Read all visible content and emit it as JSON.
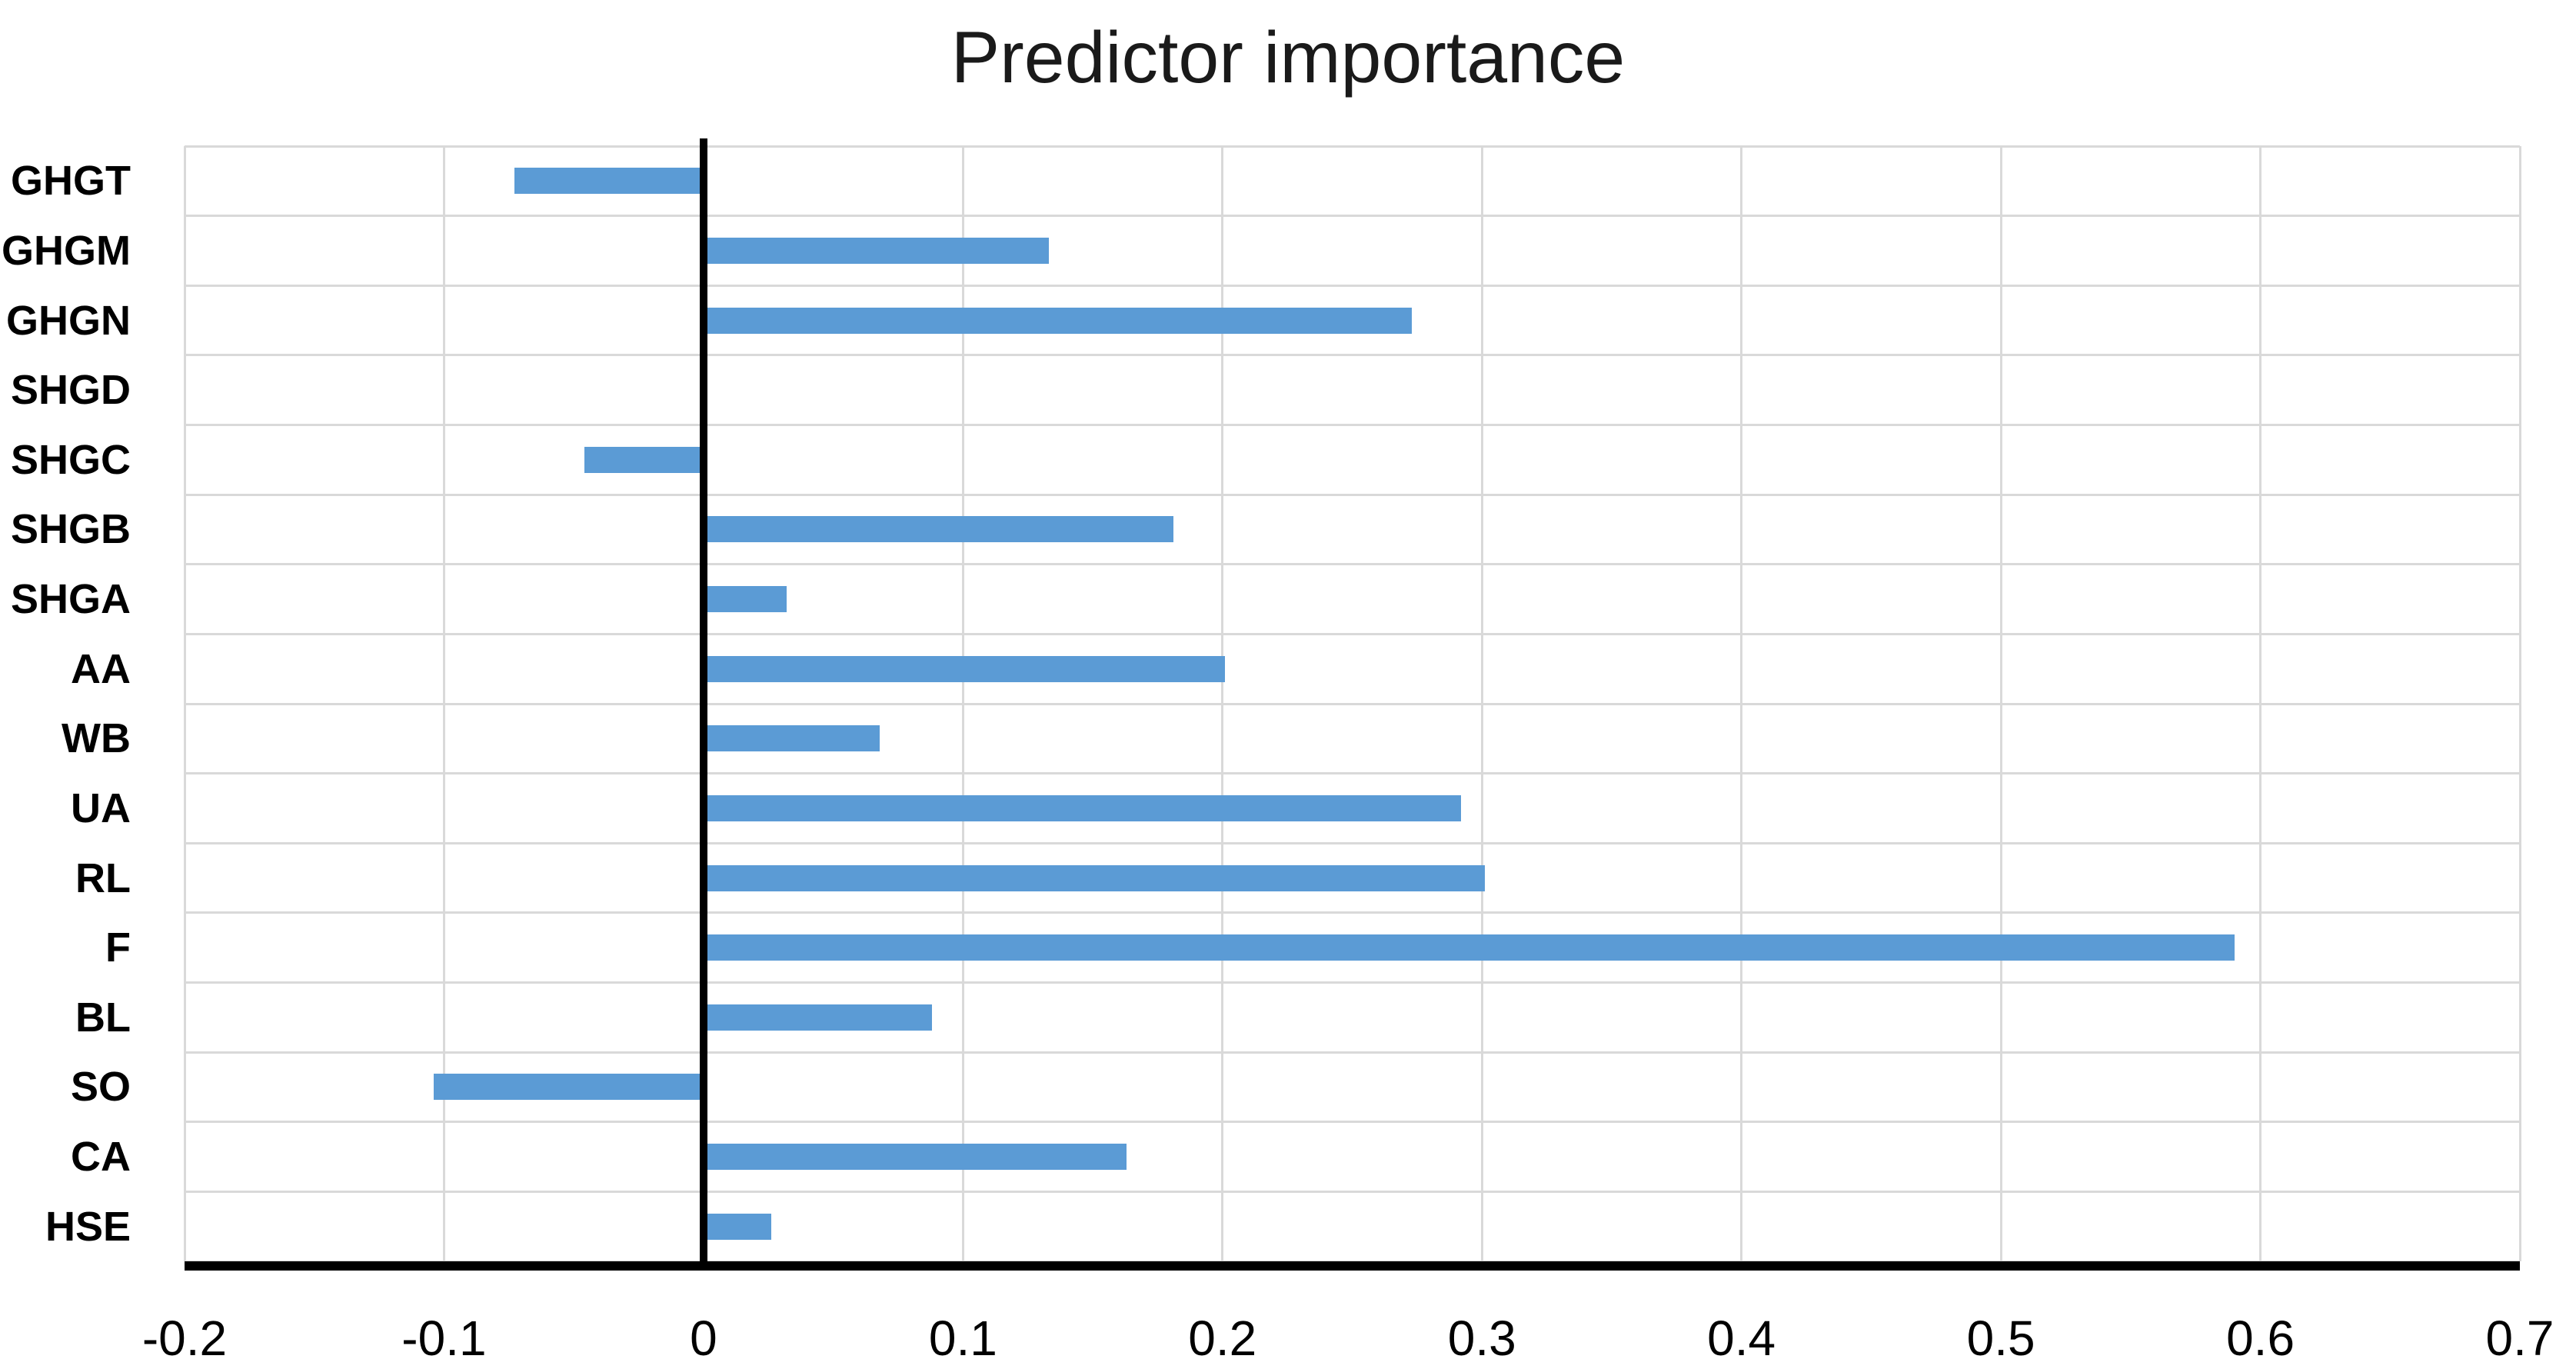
{
  "colors": {
    "bar": "#5B9BD5",
    "gridline": "#D9D9D9",
    "axis": "#000000",
    "zero_line": "#000000",
    "text": "#000000"
  },
  "chart_data": {
    "type": "bar",
    "orientation": "horizontal",
    "title": "Predictor importance",
    "categories": [
      "GHGT",
      "GHGM",
      "GHGN",
      "SHGD",
      "SHGC",
      "SHGB",
      "SHGA",
      "AA",
      "WB",
      "UA",
      "RL",
      "F",
      "BL",
      "SO",
      "CA",
      "HSE"
    ],
    "values": [
      -0.073,
      0.133,
      0.273,
      0,
      -0.046,
      0.181,
      0.032,
      0.201,
      0.068,
      0.292,
      0.301,
      0.59,
      0.088,
      -0.104,
      0.163,
      0.026
    ],
    "xlabel": "",
    "ylabel": "",
    "xlim": [
      -0.2,
      0.7
    ],
    "x_ticks": [
      "-0.2",
      "-0.1",
      "0",
      "0.1",
      "0.2",
      "0.3",
      "0.4",
      "0.5",
      "0.6",
      "0.7"
    ],
    "x_tick_values": [
      -0.2,
      -0.1,
      0,
      0.1,
      0.2,
      0.3,
      0.4,
      0.5,
      0.6,
      0.7
    ],
    "grid": true,
    "legend": false,
    "zero_baseline": true
  }
}
